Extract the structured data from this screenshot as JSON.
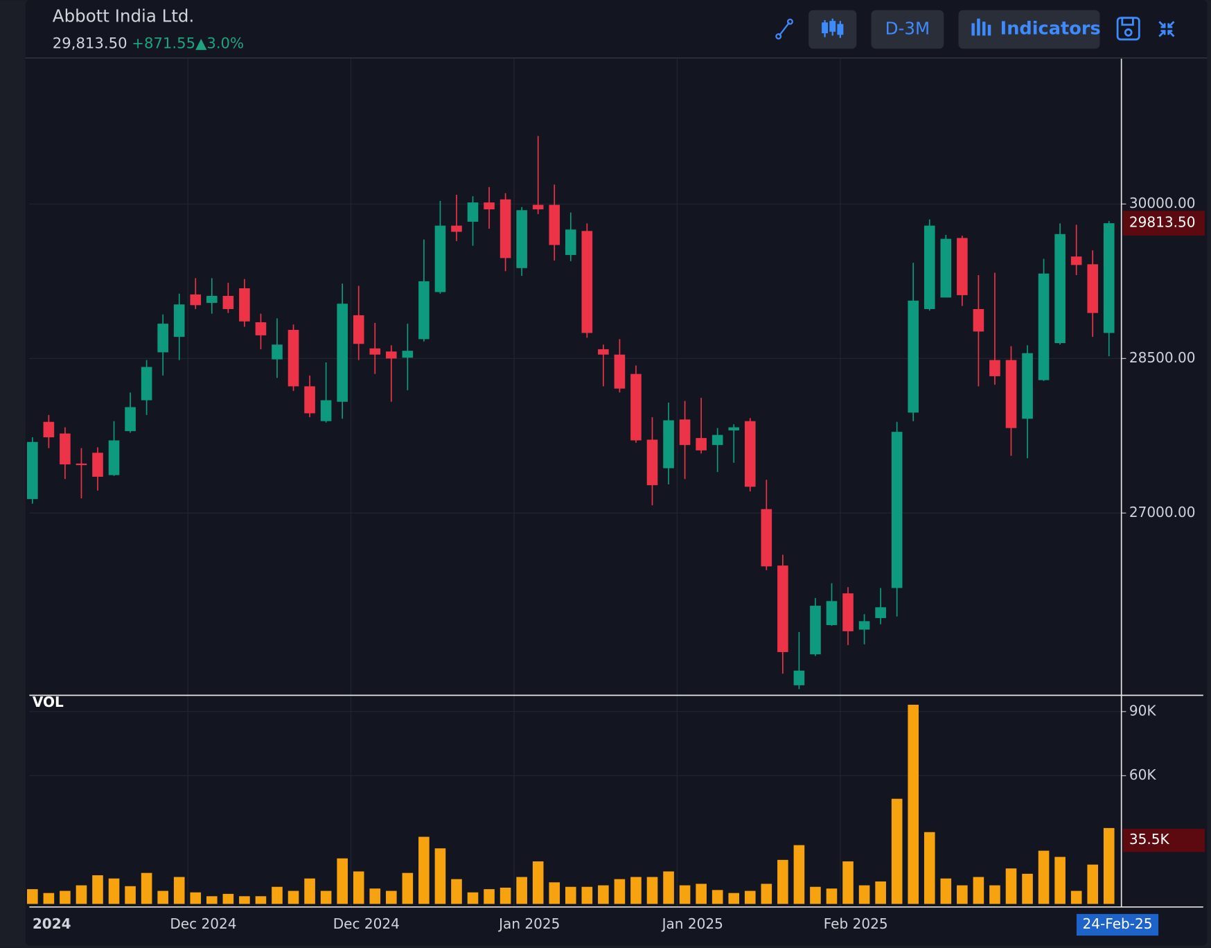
{
  "toolbar": {
    "interval": "D-3M",
    "indicators": "Indicators"
  },
  "chart_data": {
    "type": "candlestick",
    "title": "Abbott India Ltd.",
    "price_label": "29,813.50",
    "change_label": "+871.55",
    "change_pct_label": "▲3.0%",
    "categories": [
      "2024",
      null,
      null,
      null,
      null,
      null,
      null,
      null,
      null,
      null,
      "Dec 2024",
      null,
      null,
      null,
      null,
      null,
      null,
      null,
      null,
      null,
      "Dec 2024",
      null,
      null,
      null,
      null,
      null,
      null,
      null,
      null,
      null,
      "Jan 2025",
      null,
      null,
      null,
      null,
      null,
      null,
      null,
      null,
      null,
      "Jan 2025",
      null,
      null,
      null,
      null,
      null,
      null,
      null,
      null,
      null,
      "Feb 2025",
      null,
      null,
      null,
      null,
      null,
      null,
      null,
      null,
      null,
      null,
      null,
      null,
      null,
      null,
      null,
      "24-Feb-25"
    ],
    "open": [
      27135,
      27885,
      27772,
      27480,
      27585,
      27368,
      27795,
      28095,
      28560,
      28710,
      29122,
      29040,
      29108,
      29182,
      28852,
      28492,
      28778,
      28230,
      27892,
      28080,
      28920,
      28598,
      28568,
      28508,
      28688,
      29145,
      29790,
      29828,
      30015,
      30045,
      29378,
      29992,
      29992,
      29505,
      29738,
      28590,
      28538,
      28350,
      27712,
      27435,
      27908,
      27728,
      27660,
      27802,
      27892,
      27038,
      26490,
      25328,
      25628,
      25912,
      26220,
      25868,
      25980,
      26272,
      27975,
      28980,
      29092,
      29670,
      28980,
      28485,
      28485,
      27915,
      28290,
      28650,
      29490,
      29415,
      28748
    ],
    "high": [
      27735,
      27952,
      27832,
      27630,
      27638,
      27892,
      28170,
      28485,
      28928,
      29130,
      29280,
      29280,
      29235,
      29272,
      28935,
      28890,
      28830,
      28335,
      28462,
      29228,
      29205,
      28845,
      28628,
      28838,
      29655,
      30030,
      30090,
      30075,
      30165,
      30105,
      29970,
      30660,
      30188,
      29918,
      29812,
      28635,
      28688,
      28432,
      27930,
      28072,
      28088,
      28118,
      27825,
      27862,
      27922,
      27322,
      26595,
      25845,
      26175,
      26318,
      26280,
      26018,
      26272,
      27885,
      29430,
      29850,
      29700,
      29692,
      29310,
      29332,
      28620,
      28628,
      29468,
      29812,
      29798,
      29550,
      29835
    ],
    "low": [
      27090,
      27630,
      27330,
      27142,
      27218,
      27360,
      27780,
      27952,
      28335,
      28485,
      28980,
      28935,
      28942,
      28808,
      28590,
      28312,
      28185,
      27930,
      27878,
      27915,
      28485,
      28350,
      28080,
      28192,
      28665,
      29130,
      29640,
      29595,
      29760,
      29348,
      29302,
      29902,
      29452,
      29445,
      28702,
      28230,
      28170,
      27682,
      27075,
      27278,
      27330,
      27578,
      27398,
      27488,
      27210,
      26445,
      25440,
      25290,
      25612,
      25905,
      25718,
      25725,
      25920,
      25995,
      27892,
      28965,
      29092,
      29010,
      28230,
      28245,
      27555,
      27532,
      28282,
      28635,
      29310,
      28710,
      28522
    ],
    "close": [
      27690,
      27735,
      27472,
      27465,
      27352,
      27705,
      28028,
      28418,
      28838,
      29025,
      29018,
      29108,
      28980,
      28860,
      28725,
      28635,
      28230,
      27968,
      28095,
      29032,
      28642,
      28538,
      28500,
      28575,
      29250,
      29790,
      29730,
      30015,
      29948,
      29475,
      29940,
      29948,
      29602,
      29752,
      28748,
      28538,
      28208,
      27705,
      27270,
      27900,
      27660,
      27608,
      27758,
      27832,
      27255,
      26482,
      25650,
      25470,
      26100,
      26145,
      25852,
      25950,
      26085,
      27788,
      29062,
      29790,
      29662,
      29115,
      28762,
      28328,
      27825,
      28552,
      29325,
      29708,
      29408,
      28942,
      29813.5
    ],
    "color_up": "#0e9a7e",
    "color_down": "#ec3347",
    "ylim": [
      25230,
      31410
    ],
    "yticks": [
      {
        "value": 27000,
        "label": "27000.00"
      },
      {
        "value": 28500,
        "label": "28500.00"
      },
      {
        "value": 30000,
        "label": "30000.00"
      }
    ],
    "last_label": "29813.50",
    "grid": true,
    "volume": {
      "name": "VOL",
      "color": "#f7a20f",
      "values": [
        6900,
        5100,
        6100,
        8700,
        13400,
        11900,
        8300,
        14500,
        6100,
        12600,
        5400,
        3600,
        4700,
        3600,
        3600,
        8000,
        6100,
        11900,
        6100,
        21300,
        15200,
        7200,
        6100,
        14500,
        31400,
        26000,
        11600,
        5400,
        6900,
        7600,
        12600,
        19900,
        10100,
        8000,
        8000,
        8700,
        11600,
        12600,
        12600,
        15200,
        8700,
        9400,
        6500,
        5100,
        6100,
        9400,
        20600,
        27500,
        8000,
        7200,
        19900,
        8700,
        10500,
        49200,
        93200,
        33600,
        11900,
        8700,
        12600,
        8700,
        16600,
        14100,
        24900,
        22000,
        6100,
        18400,
        35500
      ],
      "ylim": [
        0,
        97600
      ],
      "yticks": [
        {
          "value": 60000,
          "label": "60K"
        },
        {
          "value": 90000,
          "label": "90K"
        }
      ],
      "last_label": "35.5K"
    }
  }
}
